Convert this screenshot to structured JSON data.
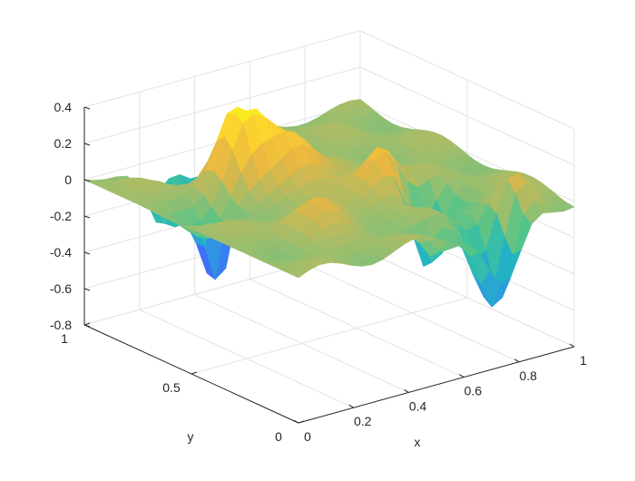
{
  "chart_data": {
    "type": "surface",
    "title": "",
    "xlabel": "x",
    "ylabel": "y",
    "zlabel": "",
    "xlim": [
      0,
      1
    ],
    "ylim": [
      0,
      1
    ],
    "zlim": [
      -0.8,
      0.4
    ],
    "x_ticks": [
      0,
      0.2,
      0.4,
      0.6,
      0.8,
      1
    ],
    "x_tick_labels": [
      "0",
      "0.2",
      "0.4",
      "0.6",
      "0.8",
      "1"
    ],
    "y_ticks": [
      0,
      0.5,
      1
    ],
    "y_tick_labels": [
      "0",
      "0.5",
      "1"
    ],
    "z_ticks": [
      -0.8,
      -0.6,
      -0.4,
      -0.2,
      0,
      0.2,
      0.4
    ],
    "z_tick_labels": [
      "-0.8",
      "-0.6",
      "-0.4",
      "-0.2",
      "0",
      "0.2",
      "0.4"
    ],
    "grid": true,
    "colormap": "parula",
    "colormap_stops": [
      "#3e26a8",
      "#4367fd",
      "#2d97e0",
      "#22b8c0",
      "#4dc58c",
      "#a3bd6a",
      "#e8b642",
      "#fbcf32",
      "#f9fb14"
    ],
    "grid_resolution": 26,
    "surface_features": [
      {
        "x": 0.4,
        "y": 0.9,
        "height": -0.72,
        "width": 0.055
      },
      {
        "x": 0.33,
        "y": 0.7,
        "height": 0.45,
        "width": 0.06
      },
      {
        "x": 0.45,
        "y": 0.62,
        "height": 0.3,
        "width": 0.07
      },
      {
        "x": 0.62,
        "y": 0.4,
        "height": 0.3,
        "width": 0.06
      },
      {
        "x": 0.75,
        "y": 0.05,
        "height": -0.55,
        "width": 0.06
      },
      {
        "x": 0.55,
        "y": 0.08,
        "height": -0.15,
        "width": 0.04
      },
      {
        "x": 0.25,
        "y": 0.95,
        "height": -0.35,
        "width": 0.05
      },
      {
        "x": 0.85,
        "y": 0.1,
        "height": 0.22,
        "width": 0.05
      },
      {
        "x": 0.7,
        "y": 0.3,
        "height": -0.45,
        "width": 0.05
      },
      {
        "x": 0.15,
        "y": 0.6,
        "height": -0.15,
        "width": 0.06
      },
      {
        "x": 0.3,
        "y": 0.3,
        "height": 0.15,
        "width": 0.07
      }
    ]
  }
}
